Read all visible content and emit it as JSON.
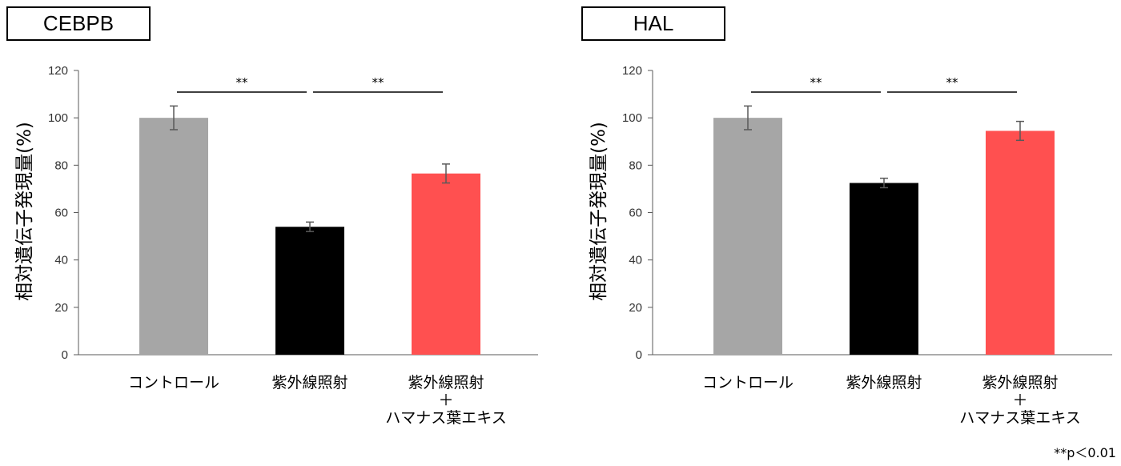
{
  "footnote": "**p＜0.01",
  "chart_data": [
    {
      "type": "bar",
      "title": "CEBPB",
      "ylabel": "相対遺伝子発現量(%)",
      "ylim": [
        0,
        120
      ],
      "yticks": [
        0,
        20,
        40,
        60,
        80,
        100,
        120
      ],
      "categories": [
        [
          "コントロール"
        ],
        [
          "紫外線照射"
        ],
        [
          "紫外線照射",
          "＋",
          "ハマナス葉エキス"
        ]
      ],
      "values": [
        100,
        54,
        76.5
      ],
      "errors": [
        5,
        2,
        4
      ],
      "colors": [
        "#a6a6a6",
        "#000000",
        "#ff5050"
      ],
      "significance": [
        {
          "from": 0,
          "to": 1,
          "label": "**"
        },
        {
          "from": 1,
          "to": 2,
          "label": "**"
        }
      ]
    },
    {
      "type": "bar",
      "title": "HAL",
      "ylabel": "相対遺伝子発現量(%)",
      "ylim": [
        0,
        120
      ],
      "yticks": [
        0,
        20,
        40,
        60,
        80,
        100,
        120
      ],
      "categories": [
        [
          "コントロール"
        ],
        [
          "紫外線照射"
        ],
        [
          "紫外線照射",
          "＋",
          "ハマナス葉エキス"
        ]
      ],
      "values": [
        100,
        72.5,
        94.5
      ],
      "errors": [
        5,
        2,
        4
      ],
      "colors": [
        "#a6a6a6",
        "#000000",
        "#ff5050"
      ],
      "significance": [
        {
          "from": 0,
          "to": 1,
          "label": "**"
        },
        {
          "from": 1,
          "to": 2,
          "label": "**"
        }
      ]
    }
  ]
}
